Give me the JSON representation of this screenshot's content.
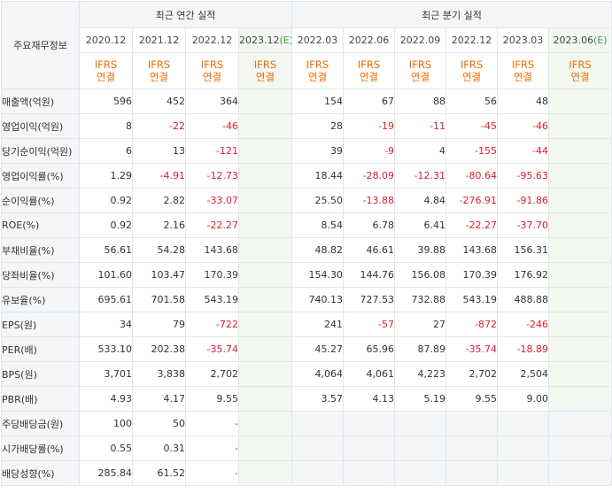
{
  "header": {
    "row_label": "주요재무정보",
    "annual_title": "최근 연간 실적",
    "quarter_title": "최근 분기 실적",
    "annual_dates": [
      "2020.12",
      "2021.12",
      "2022.12",
      "2023.12"
    ],
    "annual_est_mark": "(E)",
    "quarter_dates": [
      "2022.03",
      "2022.06",
      "2022.09",
      "2022.12",
      "2023.03",
      "2023.06"
    ],
    "quarter_est_mark": "(E)",
    "ifrs_line1": "IFRS",
    "ifrs_line2": "연결"
  },
  "rows": [
    {
      "label": "매출액(억원)",
      "annual": [
        "596",
        "452",
        "364",
        ""
      ],
      "quarterly": [
        "154",
        "67",
        "88",
        "56",
        "48",
        ""
      ]
    },
    {
      "label": "영업이익(억원)",
      "annual": [
        "8",
        "-22",
        "-46",
        ""
      ],
      "quarterly": [
        "28",
        "-19",
        "-11",
        "-45",
        "-46",
        ""
      ]
    },
    {
      "label": "당기순이익(억원)",
      "annual": [
        "6",
        "13",
        "-121",
        ""
      ],
      "quarterly": [
        "39",
        "-9",
        "4",
        "-155",
        "-44",
        ""
      ]
    },
    {
      "label": "영업이익률(%)",
      "annual": [
        "1.29",
        "-4.91",
        "-12.73",
        ""
      ],
      "quarterly": [
        "18.44",
        "-28.09",
        "-12.31",
        "-80.64",
        "-95.63",
        ""
      ]
    },
    {
      "label": "순이익률(%)",
      "annual": [
        "0.92",
        "2.82",
        "-33.07",
        ""
      ],
      "quarterly": [
        "25.50",
        "-13.88",
        "4.84",
        "-276.91",
        "-91.86",
        ""
      ]
    },
    {
      "label": "ROE(%)",
      "annual": [
        "0.92",
        "2.16",
        "-22.27",
        ""
      ],
      "quarterly": [
        "8.54",
        "6.78",
        "6.41",
        "-22.27",
        "-37.70",
        ""
      ]
    },
    {
      "label": "부채비율(%)",
      "annual": [
        "56.61",
        "54.28",
        "143.68",
        ""
      ],
      "quarterly": [
        "48.82",
        "46.61",
        "39.88",
        "143.68",
        "156.31",
        ""
      ]
    },
    {
      "label": "당좌비율(%)",
      "annual": [
        "101.60",
        "103.47",
        "170.39",
        ""
      ],
      "quarterly": [
        "154.30",
        "144.76",
        "156.08",
        "170.39",
        "176.92",
        ""
      ]
    },
    {
      "label": "유보율(%)",
      "annual": [
        "695.61",
        "701.58",
        "543.19",
        ""
      ],
      "quarterly": [
        "740.13",
        "727.53",
        "732.88",
        "543.19",
        "488.88",
        ""
      ]
    },
    {
      "label": "EPS(원)",
      "annual": [
        "34",
        "79",
        "-722",
        ""
      ],
      "quarterly": [
        "241",
        "-57",
        "27",
        "-872",
        "-246",
        ""
      ]
    },
    {
      "label": "PER(배)",
      "annual": [
        "533.10",
        "202.38",
        "-35.74",
        ""
      ],
      "quarterly": [
        "45.27",
        "65.96",
        "87.89",
        "-35.74",
        "-18.89",
        ""
      ]
    },
    {
      "label": "BPS(원)",
      "annual": [
        "3,701",
        "3,838",
        "2,702",
        ""
      ],
      "quarterly": [
        "4,064",
        "4,061",
        "4,223",
        "2,702",
        "2,504",
        ""
      ]
    },
    {
      "label": "PBR(배)",
      "annual": [
        "4.93",
        "4.17",
        "9.55",
        ""
      ],
      "quarterly": [
        "3.57",
        "4.13",
        "5.19",
        "9.55",
        "9.00",
        ""
      ]
    },
    {
      "label": "주당배당금(원)",
      "annual": [
        "100",
        "50",
        "-",
        ""
      ],
      "quarterly": null
    },
    {
      "label": "시가배당률(%)",
      "annual": [
        "0.55",
        "0.31",
        "-",
        ""
      ],
      "quarterly": null
    },
    {
      "label": "배당성향(%)",
      "annual": [
        "285.84",
        "61.52",
        "-",
        ""
      ],
      "quarterly": null
    }
  ],
  "colors": {
    "negative": "#d8202f",
    "ifrs": "#f26b00",
    "estimate_bg": "#f3f8f1",
    "header_bg": "#f4f6f8",
    "estimate_mark": "#3c9a4c"
  }
}
